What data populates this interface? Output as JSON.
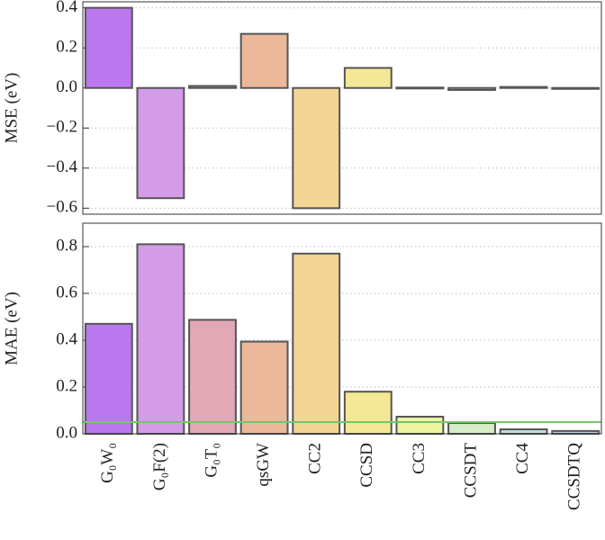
{
  "chart_data": [
    {
      "type": "bar",
      "y_label": "MSE (eV)",
      "values": [
        0.4,
        -0.55,
        0.01,
        0.27,
        -0.6,
        0.1,
        0.002,
        -0.01,
        0.005,
        -0.003
      ],
      "colors": [
        "#bb77ee",
        "#d39be8",
        "#e2a8b6",
        "#ebb89a",
        "#f2d593",
        "#f4e795",
        "#eef5a0",
        "#d7edc6",
        "#c5dfe0",
        "#b8cbe8"
      ],
      "ylim": [
        -0.63,
        0.43
      ],
      "yticks": [
        {
          "value": -0.6,
          "label": "−0.6"
        },
        {
          "value": -0.4,
          "label": "−0.4"
        },
        {
          "value": -0.2,
          "label": "−0.2"
        },
        {
          "value": 0,
          "label": "0.0"
        },
        {
          "value": 0.2,
          "label": "0.2"
        },
        {
          "value": 0.4,
          "label": "0.4"
        }
      ],
      "grid": true
    },
    {
      "type": "bar",
      "y_label": "MAE (eV)",
      "categories": [
        "G₀W₀",
        "G₀F(2)",
        "G₀T₀",
        "qsGW",
        "CC2",
        "CCSD",
        "CC3",
        "CCSDT",
        "CC4",
        "CCSDTQ"
      ],
      "values": [
        0.47,
        0.81,
        0.487,
        0.394,
        0.77,
        0.18,
        0.073,
        0.046,
        0.019,
        0.012
      ],
      "colors": [
        "#bb77ee",
        "#d39be8",
        "#e2a8b6",
        "#ebb89a",
        "#f2d593",
        "#f4e795",
        "#eef5a0",
        "#d7edc6",
        "#c5dfe0",
        "#b8cbe8"
      ],
      "ylim": [
        0,
        0.9
      ],
      "yticks": [
        {
          "value": 0,
          "label": "0.0"
        },
        {
          "value": 0.2,
          "label": "0.2"
        },
        {
          "value": 0.4,
          "label": "0.4"
        },
        {
          "value": 0.6,
          "label": "0.6"
        },
        {
          "value": 0.8,
          "label": "0.8"
        }
      ],
      "reference_line": {
        "value": 0.05,
        "color": "#77c46a"
      },
      "grid": true
    }
  ]
}
